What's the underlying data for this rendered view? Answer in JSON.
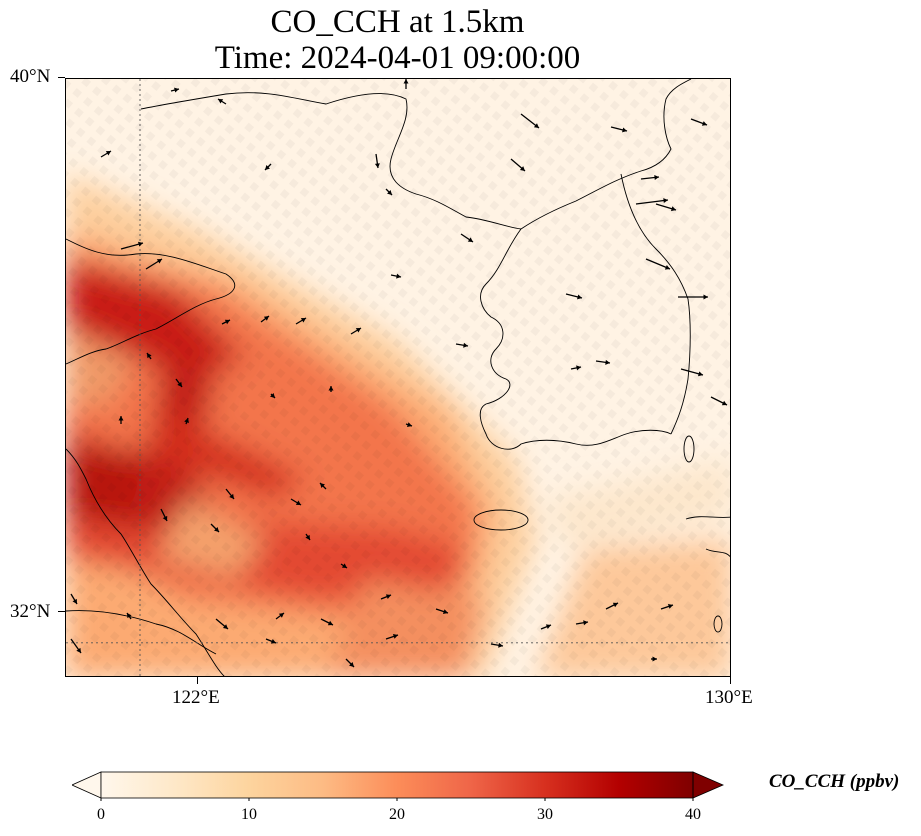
{
  "title": {
    "line1": "CO_CCH at 1.5km",
    "line2": "Time: 2024-04-01 09:00:00"
  },
  "map": {
    "lon_range": [
      121.0,
      130.0
    ],
    "lat_range": [
      31.5,
      40.0
    ],
    "lat_ticks": [
      {
        "value": 40,
        "label": "40°N"
      },
      {
        "value": 32,
        "label": "32°N"
      }
    ],
    "lon_ticks": [
      {
        "value": 122,
        "label": "122°E"
      },
      {
        "value": 130,
        "label": "130°E"
      }
    ],
    "gridlines": {
      "lon": 122,
      "lat": 32,
      "style": "dotted"
    }
  },
  "colorbar": {
    "label": "CO_CCH (ppbv)",
    "min": 0,
    "max": 40,
    "ticks": [
      "0",
      "10",
      "20",
      "30",
      "40"
    ],
    "extend": "both",
    "colormap": [
      "#fff7ec",
      "#fee8c8",
      "#fdd49e",
      "#fdbb84",
      "#fc8d59",
      "#ef6548",
      "#d7301f",
      "#b30000",
      "#7f0000"
    ]
  },
  "chart_data": {
    "type": "heatmap",
    "variable": "CO_CCH",
    "units": "ppbv",
    "level": "1.5km",
    "time": "2024-04-01 09:00:00",
    "plumes": [
      {
        "region": "southwest plume band",
        "approx_value": 32
      },
      {
        "region": "northwest plume band",
        "approx_value": 30
      },
      {
        "region": "Korean peninsula",
        "approx_value": 3
      },
      {
        "region": "open sea east",
        "approx_value": 8
      }
    ]
  }
}
